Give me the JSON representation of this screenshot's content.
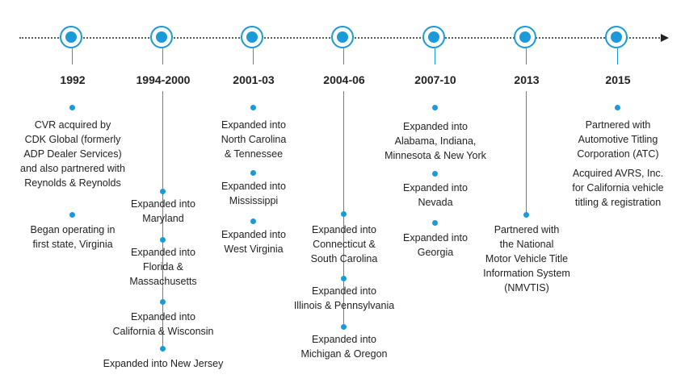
{
  "timeline": {
    "accent_color": "#1a9ad9",
    "periods": [
      {
        "year": "1992",
        "events": [
          {
            "text": "CVR acquired by\nCDK Global (formerly\nADP Dealer Services)\nand also partnered with\nReynolds & Reynolds"
          },
          {
            "text": "Began operating in\nfirst state, Virginia"
          }
        ]
      },
      {
        "year": "1994-2000",
        "events": [
          {
            "text": "Expanded into\nMaryland"
          },
          {
            "text": "Expanded into\nFlorida &\nMassachusetts"
          },
          {
            "text": "Expanded into\nCalifornia & Wisconsin"
          },
          {
            "text": "Expanded into New Jersey"
          }
        ]
      },
      {
        "year": "2001-03",
        "events": [
          {
            "text": "Expanded into\nNorth Carolina\n& Tennessee"
          },
          {
            "text": "Expanded into\nMississippi"
          },
          {
            "text": "Expanded into\nWest Virginia"
          }
        ]
      },
      {
        "year": "2004-06",
        "events": [
          {
            "text": "Expanded into\nConnecticut &\nSouth Carolina"
          },
          {
            "text": "Expanded into\nIllinois & Pennsylvania"
          },
          {
            "text": "Expanded into\nMichigan & Oregon"
          }
        ]
      },
      {
        "year": "2007-10",
        "events": [
          {
            "text": "Expanded into\nAlabama, Indiana,\nMinnesota & New York"
          },
          {
            "text": "Expanded into\nNevada"
          },
          {
            "text": "Expanded into\nGeorgia"
          }
        ]
      },
      {
        "year": "2013",
        "events": [
          {
            "text": "Partnered with\nthe National\nMotor Vehicle Title\nInformation System\n(NMVTIS)"
          }
        ]
      },
      {
        "year": "2015",
        "events": [
          {
            "text": "Partnered with\nAutomotive Titling\nCorporation (ATC)"
          },
          {
            "text": "Acquired AVRS, Inc.\nfor California vehicle\ntitling & registration"
          }
        ]
      }
    ]
  }
}
